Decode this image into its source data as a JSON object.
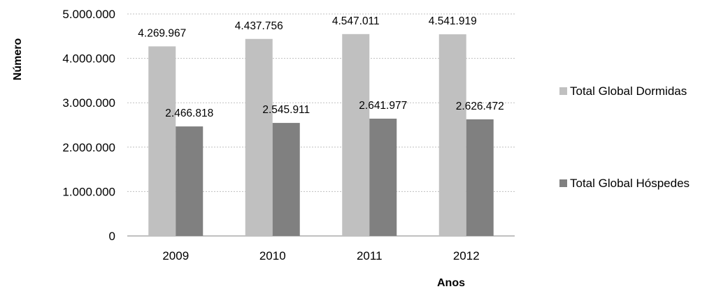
{
  "chart_data": {
    "type": "bar",
    "categories": [
      "2009",
      "2010",
      "2011",
      "2012"
    ],
    "series": [
      {
        "name": "Total Global Dormidas",
        "values": [
          4269967,
          4437756,
          4547011,
          4541919
        ],
        "labels": [
          "4.269.967",
          "4.437.756",
          "4.547.011",
          "4.541.919"
        ],
        "color": "#c0c0c0"
      },
      {
        "name": "Total Global Hóspedes",
        "values": [
          2466818,
          2545911,
          2641977,
          2626472
        ],
        "labels": [
          "2.466.818",
          "2.545.911",
          "2.641.977",
          "2.626.472"
        ],
        "color": "#808080"
      }
    ],
    "y_ticks": [
      {
        "value": 0,
        "label": "0"
      },
      {
        "value": 1000000,
        "label": "1.000.000"
      },
      {
        "value": 2000000,
        "label": "2.000.000"
      },
      {
        "value": 3000000,
        "label": "3.000.000"
      },
      {
        "value": 4000000,
        "label": "4.000.000"
      },
      {
        "value": 5000000,
        "label": "5.000.000"
      }
    ],
    "ylim": [
      0,
      5000000
    ],
    "xlabel": "Anos",
    "ylabel": "Número",
    "grid": true,
    "grid_color": "#bfbfbf",
    "legend_position": "right"
  }
}
